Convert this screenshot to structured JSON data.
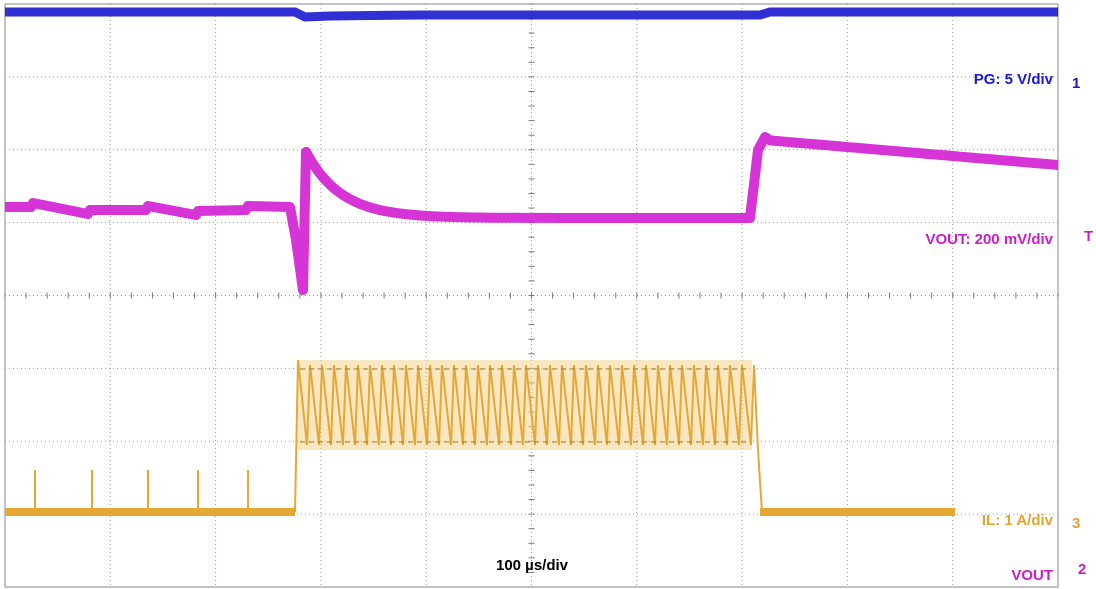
{
  "scope": {
    "channels": [
      {
        "label": "PG: 5 V/div",
        "marker": "1"
      },
      {
        "label": "VOUT: 200 mV/div",
        "marker": "T"
      },
      {
        "label": "IL: 1 A/div",
        "marker": "3"
      },
      {
        "label": "VOUT",
        "marker": "2"
      }
    ],
    "timebase": "100 µs/div"
  }
}
